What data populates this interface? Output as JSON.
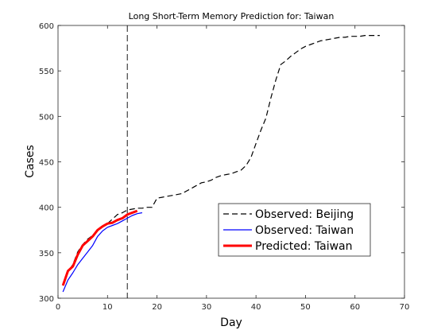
{
  "chart_data": {
    "type": "line",
    "title": "Long Short-Term Memory Prediction for: Taiwan",
    "xlabel": "Day",
    "ylabel": "Cases",
    "xlim": [
      0,
      70
    ],
    "ylim": [
      300,
      600
    ],
    "xticks": [
      0,
      10,
      20,
      30,
      40,
      50,
      60,
      70
    ],
    "yticks": [
      300,
      350,
      400,
      450,
      500,
      550,
      600
    ],
    "grid": false,
    "legend_position": "lower-right",
    "vline": {
      "x": 14,
      "style": "dashed",
      "color": "#000000"
    },
    "series": [
      {
        "name": "Observed: Beijing",
        "color": "#000000",
        "style": "dashed",
        "width": 1.2,
        "x": [
          1,
          2,
          3,
          4,
          5,
          6,
          7,
          8,
          9,
          10,
          11,
          12,
          13,
          14,
          15,
          16,
          17,
          18,
          19,
          20,
          21,
          22,
          23,
          24,
          25,
          26,
          27,
          28,
          29,
          30,
          31,
          32,
          33,
          34,
          35,
          36,
          37,
          38,
          39,
          40,
          41,
          42,
          43,
          44,
          45,
          46,
          47,
          48,
          49,
          50,
          51,
          52,
          53,
          54,
          55,
          56,
          57,
          58,
          59,
          60,
          61,
          62,
          63,
          64,
          65
        ],
        "values": [
          314,
          329,
          337,
          351,
          359,
          365,
          369,
          375,
          379,
          382,
          387,
          392,
          394,
          397,
          398,
          399,
          399,
          400,
          400,
          410,
          411,
          412,
          413,
          414,
          415,
          418,
          421,
          424,
          427,
          428,
          430,
          433,
          435,
          436,
          437,
          439,
          441,
          446,
          455,
          470,
          485,
          498,
          520,
          540,
          557,
          561,
          566,
          570,
          574,
          577,
          579,
          581,
          583,
          584,
          585,
          586,
          587,
          587,
          588,
          588,
          588,
          589,
          589,
          589,
          589
        ]
      },
      {
        "name": "Observed: Taiwan",
        "color": "#0000ff",
        "style": "solid",
        "width": 1.2,
        "x": [
          1,
          2,
          3,
          4,
          5,
          6,
          7,
          8,
          9,
          10,
          11,
          12,
          13,
          14,
          15,
          16,
          17
        ],
        "values": [
          307,
          320,
          328,
          337,
          344,
          351,
          358,
          368,
          374,
          378,
          380,
          382,
          385,
          388,
          391,
          393,
          394
        ]
      },
      {
        "name": "Predicted: Taiwan",
        "color": "#ff0000",
        "style": "solid",
        "width": 3,
        "x": [
          1,
          2,
          3,
          4,
          5,
          6,
          7,
          8,
          9,
          10,
          11,
          12,
          13,
          14,
          15,
          16
        ],
        "values": [
          314,
          330,
          335,
          348,
          358,
          363,
          368,
          375,
          379,
          382,
          383,
          386,
          388,
          392,
          394,
          396
        ]
      }
    ]
  }
}
